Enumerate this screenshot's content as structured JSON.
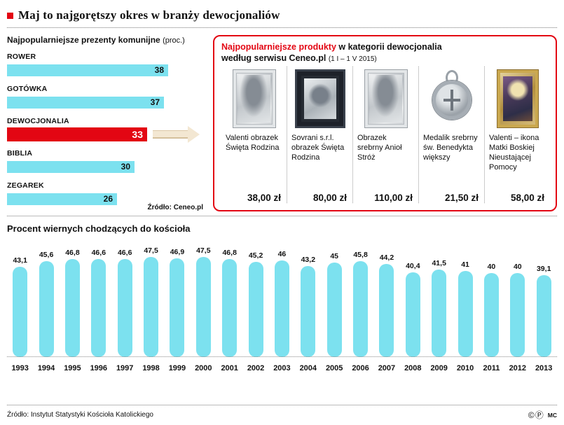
{
  "header": {
    "title": "Maj to najgorętszy okres w branży dewocjonaliów"
  },
  "products_box": {
    "title_highlight": "Najpopularniejsze produkty",
    "title_rest": "w kategorii dewocjonalia",
    "subtitle": "według serwisu Ceneo.pl",
    "subtitle_note": "(1 I – 1 V 2015)",
    "products": [
      {
        "name": "Valenti obrazek Święta Rodzina",
        "price": "38,00 zł",
        "image": "silver-plaque-holy-family-image"
      },
      {
        "name": "Sovrani s.r.l. obrazek Święta Rodzina",
        "price": "80,00 zł",
        "image": "framed-plaque-holy-family-image"
      },
      {
        "name": "Obrazek srebrny Anioł Stróż",
        "price": "110,00 zł",
        "image": "silver-plaque-guardian-angel-image"
      },
      {
        "name": "Medalik srebrny św. Benedykta większy",
        "price": "21,50 zł",
        "image": "silver-medal-st-benedict-image"
      },
      {
        "name": "Valenti – ikona Matki Boskiej Nieustającej Pomocy",
        "price": "58,00 zł",
        "image": "icon-mother-of-god-image"
      }
    ]
  },
  "footer": {
    "rights_icons": "©Ⓟ",
    "initials": "MC"
  },
  "chart_data": [
    {
      "type": "bar",
      "orientation": "horizontal",
      "title": "Najpopularniejsze prezenty komunijne",
      "title_suffix": "(proc.)",
      "unit": "percent",
      "categories": [
        "ROWER",
        "GOTÓWKA",
        "DEWOCJONALIA",
        "BIBLIA",
        "ZEGAREK"
      ],
      "values": [
        38,
        37,
        33,
        30,
        26
      ],
      "highlight_category": "DEWOCJONALIA",
      "highlight_color": "#e30613",
      "bar_color": "#7ce1ef",
      "xlim": [
        0,
        40
      ],
      "source": "Źródło: Ceneo.pl"
    },
    {
      "type": "bar",
      "orientation": "vertical",
      "title": "Procent wiernych chodzących do kościoła",
      "unit": "percent",
      "categories": [
        "1993",
        "1994",
        "1995",
        "1996",
        "1997",
        "1998",
        "1999",
        "2000",
        "2001",
        "2002",
        "2003",
        "2004",
        "2005",
        "2006",
        "2007",
        "2008",
        "2009",
        "2010",
        "2011",
        "2012",
        "2013"
      ],
      "values": [
        43.1,
        45.6,
        46.8,
        46.6,
        46.6,
        47.5,
        46.9,
        47.5,
        46.8,
        45.2,
        46,
        43.2,
        45,
        45.8,
        44.2,
        40.4,
        41.5,
        41,
        40,
        40,
        39.1
      ],
      "bar_color": "#7ce1ef",
      "ylim": [
        0,
        50
      ],
      "grid": false,
      "source": "Źródło: Instytut Statystyki Kościoła Katolickiego"
    }
  ]
}
